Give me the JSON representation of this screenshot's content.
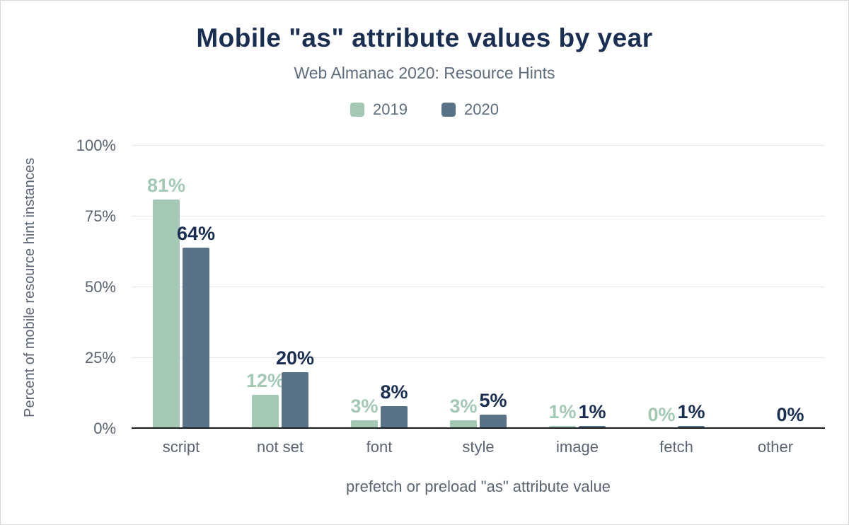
{
  "title": "Mobile \"as\" attribute values by year",
  "subtitle": "Web Almanac 2020: Resource Hints",
  "colors": {
    "title": "#1a2e52",
    "subtitle": "#5e6d7e",
    "axis_text": "#5a6472",
    "gridline": "#e6e7e9",
    "baseline": "#1a1d21",
    "series_2019": "#a3c9b4",
    "series_2020": "#5a7287",
    "label_2019": "#a3c9b4",
    "label_2020": "#1a2e52"
  },
  "chart_data": {
    "type": "bar",
    "title": "Mobile \"as\" attribute values by year",
    "subtitle": "Web Almanac 2020: Resource Hints",
    "categories": [
      "script",
      "not set",
      "font",
      "style",
      "image",
      "fetch",
      "other"
    ],
    "series": [
      {
        "name": "2019",
        "color": "#a3c9b4",
        "label_color": "#a3c9b4",
        "values": [
          81,
          12,
          3,
          3,
          1,
          0,
          null
        ]
      },
      {
        "name": "2020",
        "color": "#5a7287",
        "label_color": "#1a2e52",
        "values": [
          64,
          20,
          8,
          5,
          1,
          1,
          0
        ]
      }
    ],
    "xlabel": "prefetch or preload \"as\" attribute value",
    "ylabel": "Percent of mobile resource hint instances",
    "ylim": [
      0,
      100
    ],
    "yticks": [
      0,
      25,
      50,
      75,
      100
    ],
    "ytick_labels": [
      "0%",
      "25%",
      "50%",
      "75%",
      "100%"
    ],
    "value_suffix": "%",
    "grid": true,
    "legend_position": "top"
  }
}
